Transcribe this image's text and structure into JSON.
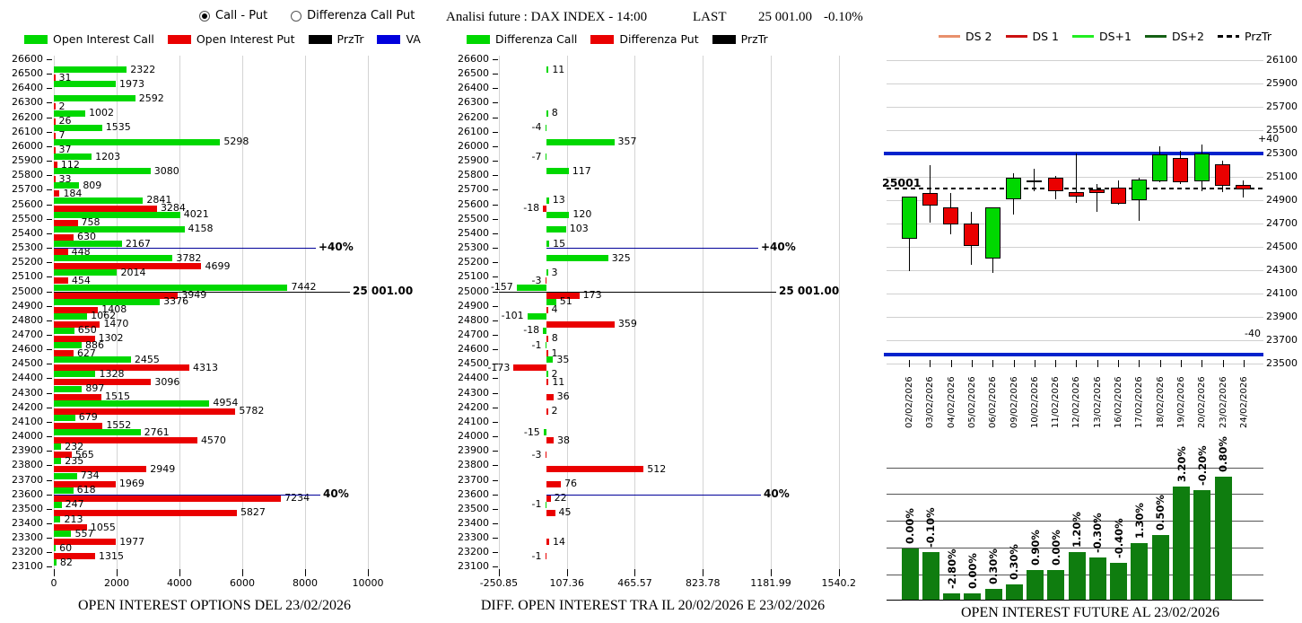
{
  "controls": {
    "radio_call_put": "Call - Put",
    "radio_differenza": "Differenza Call Put"
  },
  "header": {
    "analysis": "Analisi future : DAX INDEX - 14:00",
    "last_label": "LAST",
    "last_value": "25 001.00",
    "last_change": "-0.10%"
  },
  "legends": {
    "options": [
      {
        "label": "Open Interest Call",
        "color": "#00d800"
      },
      {
        "label": "Open Interest Put",
        "color": "#ea0000"
      },
      {
        "label": "PrzTr",
        "color": "#000000"
      },
      {
        "label": "VA",
        "color": "#0000dd"
      }
    ],
    "diff": [
      {
        "label": "Differenza Call",
        "color": "#00d800"
      },
      {
        "label": "Differenza Put",
        "color": "#ea0000"
      },
      {
        "label": "PrzTr",
        "color": "#000000"
      }
    ],
    "future": [
      {
        "label": "DS 2",
        "color": "#e8906c",
        "dash": false
      },
      {
        "label": "DS 1",
        "color": "#cc1111",
        "dash": false
      },
      {
        "label": "DS+1",
        "color": "#22ee22",
        "dash": false
      },
      {
        "label": "DS+2",
        "color": "#156015",
        "dash": false
      },
      {
        "label": "PrzTr",
        "color": "#000000",
        "dash": true
      }
    ]
  },
  "chart_data": [
    {
      "id": "open-interest-options",
      "type": "bar",
      "orientation": "horizontal",
      "title": "OPEN INTEREST OPTIONS DEL 23/02/2026",
      "categories": [
        26600,
        26500,
        26400,
        26300,
        26200,
        26100,
        26000,
        25900,
        25800,
        25700,
        25600,
        25500,
        25400,
        25300,
        25200,
        25100,
        25000,
        24900,
        24800,
        24700,
        24600,
        24500,
        24400,
        24300,
        24200,
        24100,
        24000,
        23900,
        23800,
        23700,
        23600,
        23500,
        23400,
        23300,
        23200,
        23100
      ],
      "series": [
        {
          "name": "Open Interest Call",
          "color": "#00d800",
          "values": [
            null,
            2322,
            1973,
            2592,
            1002,
            1535,
            5298,
            1203,
            3080,
            809,
            2841,
            4021,
            4158,
            2167,
            3782,
            2014,
            7442,
            3376,
            1062,
            650,
            886,
            2455,
            1328,
            897,
            4954,
            679,
            2761,
            232,
            235,
            734,
            618,
            247,
            213,
            557,
            60,
            82
          ]
        },
        {
          "name": "Open Interest Put",
          "color": "#ea0000",
          "values": [
            null,
            31,
            null,
            2,
            26,
            7,
            37,
            112,
            33,
            184,
            3284,
            758,
            630,
            448,
            4699,
            454,
            3949,
            1408,
            1470,
            1302,
            627,
            4313,
            3096,
            1515,
            5782,
            1552,
            4570,
            565,
            2949,
            1969,
            7234,
            5827,
            1055,
            1977,
            1315,
            null
          ]
        }
      ],
      "xlim": [
        0,
        10500
      ],
      "x_ticks": [
        0,
        2000,
        4000,
        6000,
        8000,
        10000
      ],
      "x_tick_labels": [
        "0",
        "2000",
        "4000",
        "6000",
        "8000",
        "10000"
      ],
      "grid": true,
      "annotations": [
        {
          "label": "+40%",
          "at": 25300,
          "line_color": "#000099"
        },
        {
          "label": "25 001.00",
          "at": 25000,
          "line_color": "#000000"
        },
        {
          "label": "40%",
          "at": 23600,
          "line_color": "#000099"
        }
      ]
    },
    {
      "id": "diff-open-interest",
      "type": "bar",
      "orientation": "horizontal",
      "title": "DIFF. OPEN INTEREST TRA IL 20/02/2026 E 23/02/2026",
      "categories": [
        26600,
        26500,
        26400,
        26300,
        26200,
        26100,
        26000,
        25900,
        25800,
        25700,
        25600,
        25500,
        25400,
        25300,
        25200,
        25100,
        25000,
        24900,
        24800,
        24700,
        24600,
        24500,
        24400,
        24300,
        24200,
        24100,
        24000,
        23900,
        23800,
        23700,
        23600,
        23500,
        23400,
        23300,
        23200,
        23100
      ],
      "series": [
        {
          "name": "Differenza Call",
          "color": "#00d800",
          "values": [
            null,
            11,
            null,
            null,
            8,
            -4,
            357,
            -7,
            117,
            null,
            13,
            120,
            103,
            15,
            325,
            3,
            -157,
            51,
            -101,
            -18,
            -1,
            35,
            2,
            null,
            null,
            null,
            -15,
            null,
            null,
            null,
            null,
            -1,
            null,
            null,
            null,
            null
          ]
        },
        {
          "name": "Differenza Put",
          "color": "#ea0000",
          "values": [
            null,
            null,
            null,
            null,
            null,
            null,
            null,
            null,
            null,
            null,
            -18,
            null,
            null,
            null,
            null,
            -3,
            173,
            4,
            359,
            8,
            1,
            -173,
            11,
            36,
            2,
            null,
            38,
            -3,
            512,
            76,
            22,
            45,
            null,
            14,
            -1,
            null
          ]
        }
      ],
      "xlim": [
        -250.85,
        1540.2
      ],
      "x_ticks": [
        -250.85,
        107.36,
        465.57,
        823.78,
        1181.99,
        1540.2
      ],
      "x_tick_labels": [
        "-250.85",
        "107.36",
        "465.57",
        "823.78",
        "1181.99",
        "1540.2"
      ],
      "grid": true,
      "annotations": [
        {
          "label": "+40%",
          "at": 25300,
          "line_color": "#000099"
        },
        {
          "label": "25 001.00",
          "at": 25000,
          "line_color": "#000000"
        },
        {
          "label": "40%",
          "at": 23600,
          "line_color": "#000099"
        }
      ]
    },
    {
      "id": "future-candles",
      "type": "candlestick",
      "dates": [
        "02/02/2026",
        "03/02/2026",
        "04/02/2026",
        "05/02/2026",
        "06/02/2026",
        "09/02/2026",
        "10/02/2026",
        "11/02/2026",
        "12/02/2026",
        "13/02/2026",
        "16/02/2026",
        "17/02/2026",
        "18/02/2026",
        "19/02/2026",
        "20/02/2026",
        "23/02/2026",
        "24/02/2026"
      ],
      "ohlc": [
        [
          24570,
          24930,
          24290,
          24930
        ],
        [
          24960,
          25200,
          24710,
          24850
        ],
        [
          24840,
          24960,
          24610,
          24690
        ],
        [
          24700,
          24800,
          24350,
          24510
        ],
        [
          24400,
          24840,
          24280,
          24840
        ],
        [
          24910,
          25130,
          24780,
          25090
        ],
        [
          25060,
          25170,
          24980,
          25070
        ],
        [
          25090,
          25110,
          24910,
          24980
        ],
        [
          24970,
          25300,
          24880,
          24930
        ],
        [
          24990,
          25040,
          24800,
          24960
        ],
        [
          25010,
          25070,
          24860,
          24870
        ],
        [
          24900,
          25090,
          24720,
          25080
        ],
        [
          25060,
          25360,
          25050,
          25290
        ],
        [
          25260,
          25320,
          25040,
          25050
        ],
        [
          25060,
          25380,
          24980,
          25300
        ],
        [
          25210,
          25240,
          24970,
          25020
        ],
        [
          25030,
          25070,
          24920,
          24990
        ]
      ],
      "up_color": "#00d800",
      "down_color": "#ea0000",
      "y_ticks": [
        26100,
        25900,
        25700,
        25500,
        25300,
        25100,
        24900,
        24700,
        24500,
        24300,
        24100,
        23900,
        23700,
        23500
      ],
      "price_label": "25001",
      "hlines": [
        {
          "label": "+40",
          "value": 25300,
          "color": "#0022cc",
          "style": "solid",
          "width": 4
        },
        {
          "label": "-40",
          "value": 23580,
          "color": "#0022cc",
          "style": "solid",
          "width": 4
        },
        {
          "label": "PrzTr",
          "value": 25001,
          "color": "#000000",
          "style": "dashed",
          "width": 2
        }
      ]
    },
    {
      "id": "open-interest-future",
      "type": "bar",
      "title": "OPEN INTEREST FUTURE AL 23/02/2026",
      "categories": [
        "02/02/2026",
        "03/02/2026",
        "04/02/2026",
        "05/02/2026",
        "06/02/2026",
        "09/02/2026",
        "10/02/2026",
        "11/02/2026",
        "12/02/2026",
        "13/02/2026",
        "16/02/2026",
        "17/02/2026",
        "18/02/2026",
        "19/02/2026",
        "20/02/2026",
        "23/02/2026"
      ],
      "labels": [
        "0.00%",
        "-0.10%",
        "-2.80%",
        "0.00%",
        "0.30%",
        "0.30%",
        "0.90%",
        "0.00%",
        "1.20%",
        "-0.30%",
        "-0.40%",
        "1.30%",
        "0.50%",
        "3.20%",
        "-0.20%",
        "0.80%"
      ],
      "values_rel": [
        57,
        53,
        7,
        7,
        12,
        17,
        33,
        33,
        53,
        47,
        41,
        63,
        72,
        126,
        122,
        137
      ],
      "bar_color": "#0f7d0f",
      "grid": true
    }
  ]
}
